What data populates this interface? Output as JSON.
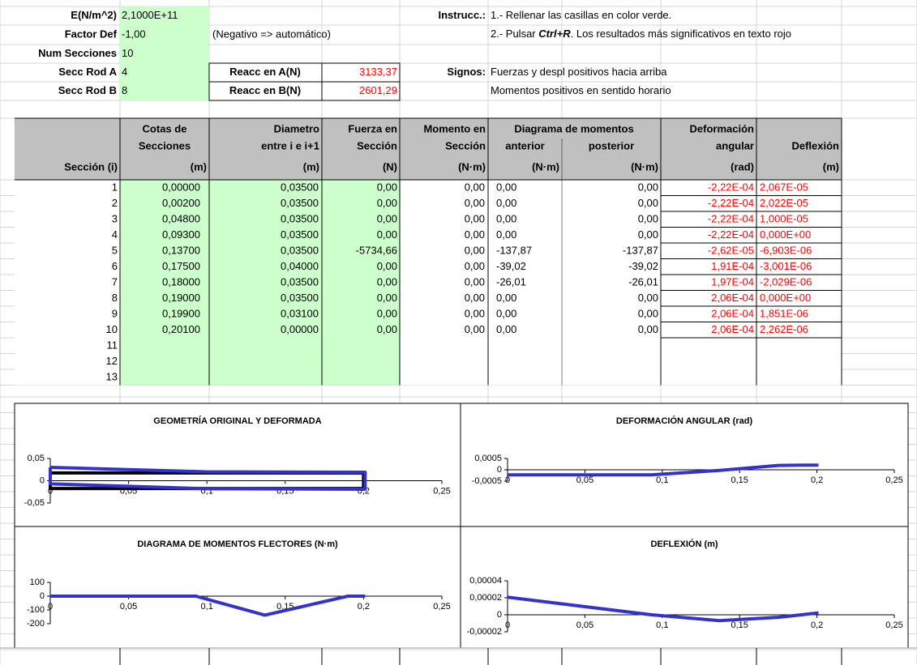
{
  "params": [
    {
      "label": "E(N/m^2)",
      "value": "2,1000E+11"
    },
    {
      "label": "Factor Def",
      "value": "-1,00",
      "note": "(Negativo => automático)"
    },
    {
      "label": "Num Secciones",
      "value": "10"
    },
    {
      "label": "Secc Rod A",
      "value": "4"
    },
    {
      "label": "Secc Rod B",
      "value": "8"
    }
  ],
  "reactions": [
    {
      "label": "Reacc en A(N)",
      "value": "3133,37"
    },
    {
      "label": "Reacc en B(N)",
      "value": "2601,29"
    }
  ],
  "instructions": {
    "label": "Instrucc.:",
    "line1": "1.- Rellenar las casillas en color verde.",
    "line2": {
      "before": "2.- Pulsar ",
      "key": "Ctrl+R",
      "after": ". Los resultados más significativos  en texto rojo"
    }
  },
  "signs": {
    "label": "Signos:",
    "lines": [
      "Fuerzas y despl positivos hacia arriba",
      "Momentos positivos en sentido horario"
    ]
  },
  "table": {
    "group": "Diagrama de momentos",
    "headers": [
      [
        "Sección (i)"
      ],
      [
        "Cotas de",
        "Secciones",
        "(m)"
      ],
      [
        "Diametro",
        "entre i e i+1",
        "(m)"
      ],
      [
        "Fuerza en",
        "Sección",
        "(N)"
      ],
      [
        "Momento en",
        "Sección",
        "(N·m)"
      ],
      [
        "anterior",
        "(N·m)"
      ],
      [
        "posterior",
        "(N·m)"
      ],
      [
        "Deformación",
        "angular",
        "(rad)"
      ],
      [
        "Deflexión",
        "(m)"
      ]
    ],
    "rows": [
      [
        "1",
        "0,00000",
        "0,03500",
        "0,00",
        "0,00",
        "0,00",
        "0,00",
        "-2,22E-04",
        "2,067E-05"
      ],
      [
        "2",
        "0,00200",
        "0,03500",
        "0,00",
        "0,00",
        "0,00",
        "0,00",
        "-2,22E-04",
        "2,022E-05"
      ],
      [
        "3",
        "0,04800",
        "0,03500",
        "0,00",
        "0,00",
        "0,00",
        "0,00",
        "-2,22E-04",
        "1,000E-05"
      ],
      [
        "4",
        "0,09300",
        "0,03500",
        "0,00",
        "0,00",
        "0,00",
        "0,00",
        "-2,22E-04",
        "0,000E+00"
      ],
      [
        "5",
        "0,13700",
        "0,03500",
        "-5734,66",
        "0,00",
        "-137,87",
        "-137,87",
        "-2,62E-05",
        "-6,903E-06"
      ],
      [
        "6",
        "0,17500",
        "0,04000",
        "0,00",
        "0,00",
        "-39,02",
        "-39,02",
        "1,91E-04",
        "-3,001E-06"
      ],
      [
        "7",
        "0,18000",
        "0,03500",
        "0,00",
        "0,00",
        "-26,01",
        "-26,01",
        "1,97E-04",
        "-2,029E-06"
      ],
      [
        "8",
        "0,19000",
        "0,03500",
        "0,00",
        "0,00",
        "0,00",
        "0,00",
        "2,06E-04",
        "0,000E+00"
      ],
      [
        "9",
        "0,19900",
        "0,03100",
        "0,00",
        "0,00",
        "0,00",
        "0,00",
        "2,06E-04",
        "1,851E-06"
      ],
      [
        "10",
        "0,20100",
        "0,00000",
        "0,00",
        "0,00",
        "0,00",
        "0,00",
        "2,06E-04",
        "2,262E-06"
      ],
      [
        "11"
      ],
      [
        "12"
      ],
      [
        "13"
      ]
    ]
  },
  "charts": [
    {
      "type": "line",
      "title": "GEOMETRÍA ORIGINAL Y DEFORMADA",
      "xlim": [
        0,
        0.25
      ],
      "xticks": [
        0,
        {
          "value": 0.05,
          "label": "0,05"
        },
        {
          "value": 0.1,
          "label": "0,1"
        },
        {
          "value": 0.15,
          "label": "0,15"
        },
        {
          "value": 0.2,
          "label": "0,2"
        },
        {
          "value": 0.25,
          "label": "0,25"
        }
      ],
      "ylim": [
        -0.05,
        0.05
      ],
      "yticks": [
        {
          "value": -0.05,
          "label": "-0,05"
        },
        0,
        {
          "value": 0.05,
          "label": "0,05"
        }
      ],
      "series": [
        {
          "color": "#000000",
          "x": [
            0,
            0.2,
            0.2,
            0,
            0
          ],
          "values": [
            0.0175,
            0.0175,
            -0.0175,
            -0.0175,
            0.0175
          ]
        },
        {
          "color": "#3333cc",
          "x": [
            0,
            0.1,
            0.2,
            0.201,
            0.201,
            0.2,
            0.1,
            0,
            0
          ],
          "values": [
            0.03,
            0.02,
            0.019,
            0.019,
            -0.019,
            -0.019,
            -0.018,
            -0.007,
            0.03
          ]
        }
      ]
    },
    {
      "type": "line",
      "title": "DEFORMACIÓN ANGULAR (rad)",
      "xlim": [
        0,
        0.25
      ],
      "xticks": [
        0,
        {
          "value": 0.05,
          "label": "0,05"
        },
        {
          "value": 0.1,
          "label": "0,1"
        },
        {
          "value": 0.15,
          "label": "0,15"
        },
        {
          "value": 0.2,
          "label": "0,2"
        },
        {
          "value": 0.25,
          "label": "0,25"
        }
      ],
      "ylim": [
        -0.0005,
        0.0005
      ],
      "yticks": [
        {
          "value": -0.0005,
          "label": "-0,0005"
        },
        0,
        {
          "value": 0.0005,
          "label": "0,0005"
        }
      ],
      "series": [
        {
          "color": "#3333cc",
          "x": [
            0,
            0.002,
            0.048,
            0.093,
            0.137,
            0.175,
            0.18,
            0.19,
            0.199,
            0.201
          ],
          "values": [
            -0.000222,
            -0.000222,
            -0.000222,
            -0.000222,
            -2.62e-05,
            0.000191,
            0.000197,
            0.000206,
            0.000206,
            0.000206
          ]
        }
      ]
    },
    {
      "type": "line",
      "title": "DIAGRAMA DE MOMENTOS FLECTORES (N·m)",
      "xlim": [
        0,
        0.25
      ],
      "xticks": [
        0,
        {
          "value": 0.05,
          "label": "0,05"
        },
        {
          "value": 0.1,
          "label": "0,1"
        },
        {
          "value": 0.15,
          "label": "0,15"
        },
        {
          "value": 0.2,
          "label": "0,2"
        },
        {
          "value": 0.25,
          "label": "0,25"
        }
      ],
      "ylim": [
        -200,
        100
      ],
      "yticks": [
        -200,
        -100,
        0,
        100
      ],
      "series": [
        {
          "color": "#3333cc",
          "x": [
            0,
            0.002,
            0.048,
            0.093,
            0.137,
            0.175,
            0.18,
            0.19,
            0.199,
            0.201
          ],
          "values": [
            0,
            0,
            0,
            0,
            -137.87,
            -39.02,
            -26.01,
            0,
            0,
            0
          ]
        }
      ]
    },
    {
      "type": "line",
      "title": "DEFLEXIÓN (m)",
      "xlim": [
        0,
        0.25
      ],
      "xticks": [
        0,
        {
          "value": 0.05,
          "label": "0,05"
        },
        {
          "value": 0.1,
          "label": "0,1"
        },
        {
          "value": 0.15,
          "label": "0,15"
        },
        {
          "value": 0.2,
          "label": "0,2"
        },
        {
          "value": 0.25,
          "label": "0,25"
        }
      ],
      "ylim": [
        -2e-05,
        4e-05
      ],
      "yticks": [
        {
          "value": -2e-05,
          "label": "-0,00002"
        },
        0,
        {
          "value": 2e-05,
          "label": "0,00002"
        },
        {
          "value": 4e-05,
          "label": "0,00004"
        }
      ],
      "series": [
        {
          "color": "#3333cc",
          "x": [
            0,
            0.002,
            0.048,
            0.093,
            0.137,
            0.175,
            0.18,
            0.19,
            0.199,
            0.201
          ],
          "values": [
            2.067e-05,
            2.022e-05,
            1e-05,
            0,
            -6.903e-06,
            -3.001e-06,
            -2.029e-06,
            0,
            1.851e-06,
            2.262e-06
          ]
        }
      ]
    }
  ]
}
